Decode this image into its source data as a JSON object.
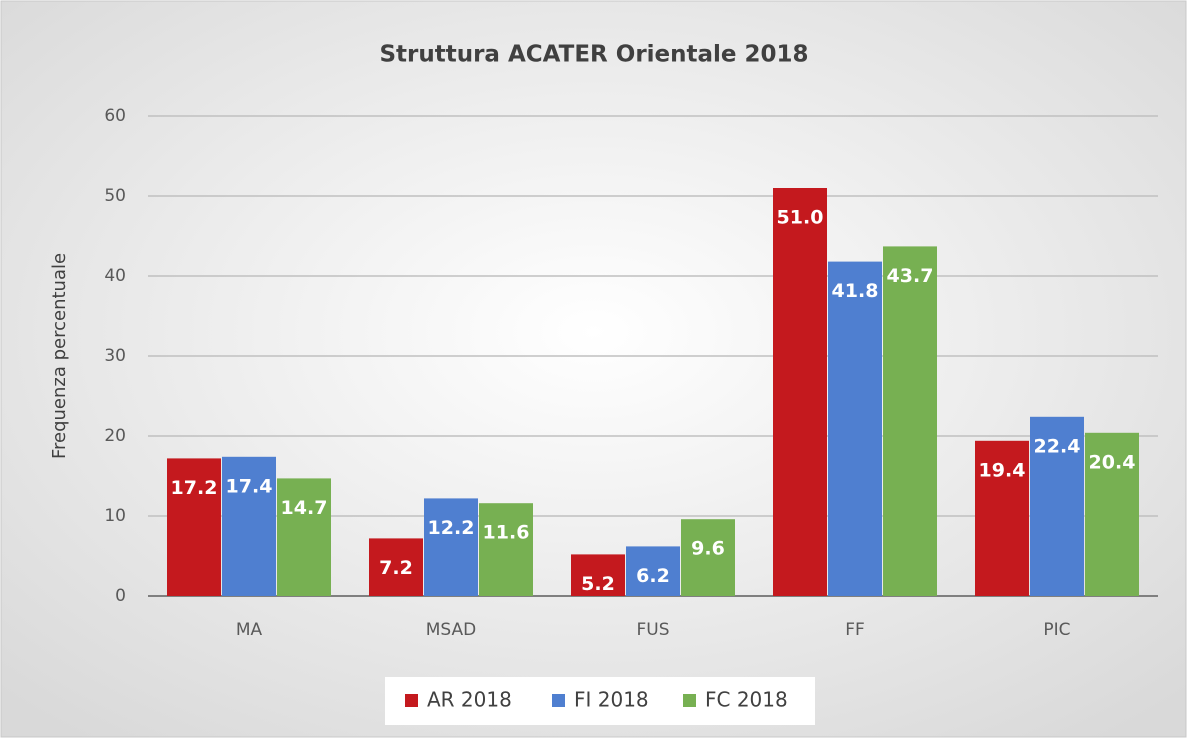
{
  "chart_data": {
    "type": "bar",
    "title": "Struttura ACATER Orientale 2018",
    "y_label": "Frequenza percentuale",
    "categories": [
      "MA",
      "MSAD",
      "FUS",
      "FF",
      "PIC"
    ],
    "series": [
      {
        "name": "AR 2018",
        "color": "#c4191e",
        "values": [
          17.2,
          7.2,
          5.2,
          51.0,
          19.4
        ],
        "value_labels": [
          "17.2",
          "7.2",
          "5.2",
          "51.0",
          "19.4"
        ]
      },
      {
        "name": "FI 2018",
        "color": "#4f7fd0",
        "values": [
          17.4,
          12.2,
          6.2,
          41.8,
          22.4
        ],
        "value_labels": [
          "17.4",
          "12.2",
          "6.2",
          "41.8",
          "22.4"
        ]
      },
      {
        "name": "FC 2018",
        "color": "#77b052",
        "values": [
          14.7,
          11.6,
          9.6,
          43.7,
          20.4
        ],
        "value_labels": [
          "14.7",
          "11.6",
          "9.6",
          "43.7",
          "20.4"
        ]
      }
    ],
    "ylim": [
      0,
      60
    ],
    "yticks": [
      0,
      10,
      20,
      30,
      40,
      50,
      60
    ],
    "grid": true,
    "legend": "bottom"
  }
}
